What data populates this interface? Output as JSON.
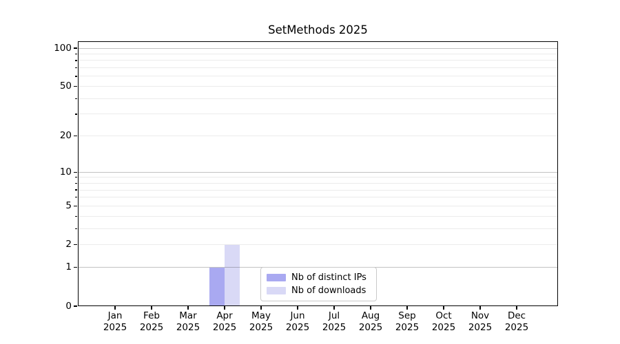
{
  "title": "SetMethods 2025",
  "chart_data": {
    "type": "bar",
    "title": "SetMethods 2025",
    "categories": [
      "Jan 2025",
      "Feb 2025",
      "Mar 2025",
      "Apr 2025",
      "May 2025",
      "Jun 2025",
      "Jul 2025",
      "Aug 2025",
      "Sep 2025",
      "Oct 2025",
      "Nov 2025",
      "Dec 2025"
    ],
    "x_tick_month": [
      "Jan",
      "Feb",
      "Mar",
      "Apr",
      "May",
      "Jun",
      "Jul",
      "Aug",
      "Sep",
      "Oct",
      "Nov",
      "Dec"
    ],
    "x_tick_year": "2025",
    "series": [
      {
        "name": "Nb of distinct IPs",
        "color": "#a9a9f1",
        "values": [
          0,
          0,
          0,
          1,
          0,
          0,
          0,
          0,
          0,
          0,
          0,
          0
        ]
      },
      {
        "name": "Nb of downloads",
        "color": "#d9d9f6",
        "values": [
          0,
          0,
          0,
          2,
          0,
          0,
          0,
          0,
          0,
          0,
          0,
          0
        ]
      }
    ],
    "yscale": "log1p",
    "ylim": [
      0,
      113
    ],
    "y_axis": {
      "labeled_ticks": [
        0,
        1,
        2,
        5,
        10,
        20,
        50,
        100
      ],
      "strong_grid_ticks": [
        1,
        10,
        100
      ],
      "weak_grid_ticks": [
        2,
        3,
        4,
        5,
        6,
        7,
        8,
        9,
        20,
        30,
        40,
        50,
        60,
        70,
        80,
        90
      ],
      "minor_mark_ticks": [
        3,
        4,
        6,
        7,
        8,
        9,
        30,
        40,
        60,
        70,
        80,
        90
      ]
    },
    "grid": true,
    "legend_position": "lower center",
    "colors": {
      "background": "#ffffff",
      "axis": "#000000",
      "text": "#000000",
      "grid_major": "#c2c2c2",
      "grid_minor": "#ececec",
      "legend_border": "#c9c9c9"
    }
  },
  "legend": {
    "items": [
      "Nb of distinct IPs",
      "Nb of downloads"
    ]
  }
}
